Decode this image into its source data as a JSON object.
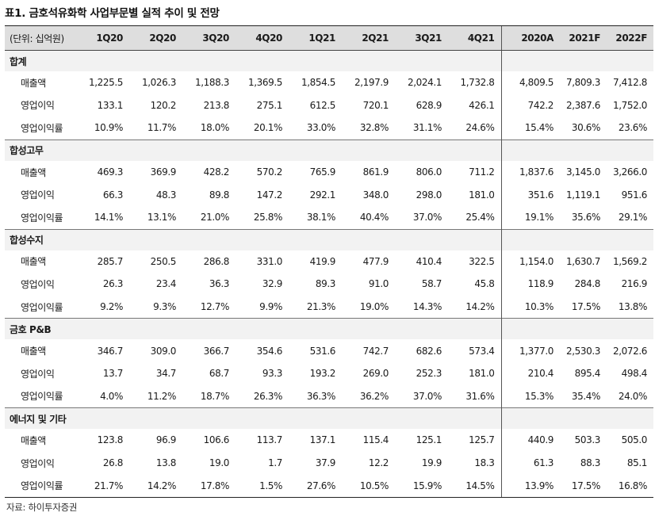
{
  "title": "표1.  금호석유화학 사업부문별 실적 추이 및 전망",
  "header": {
    "unit": "(단위: 십억원)",
    "quarters": [
      "1Q20",
      "2Q20",
      "3Q20",
      "4Q20",
      "1Q21",
      "2Q21",
      "3Q21",
      "4Q21"
    ],
    "years": [
      "2020A",
      "2021F",
      "2022F"
    ]
  },
  "segments": [
    {
      "name": "합계",
      "rows": [
        {
          "label": "매출액",
          "values": [
            "1,225.5",
            "1,026.3",
            "1,188.3",
            "1,369.5",
            "1,854.5",
            "2,197.9",
            "2,024.1",
            "1,732.8",
            "4,809.5",
            "7,809.3",
            "7,412.8"
          ]
        },
        {
          "label": "영업이익",
          "values": [
            "133.1",
            "120.2",
            "213.8",
            "275.1",
            "612.5",
            "720.1",
            "628.9",
            "426.1",
            "742.2",
            "2,387.6",
            "1,752.0"
          ]
        },
        {
          "label": "영업이익률",
          "values": [
            "10.9%",
            "11.7%",
            "18.0%",
            "20.1%",
            "33.0%",
            "32.8%",
            "31.1%",
            "24.6%",
            "15.4%",
            "30.6%",
            "23.6%"
          ]
        }
      ]
    },
    {
      "name": "합성고무",
      "rows": [
        {
          "label": "매출액",
          "values": [
            "469.3",
            "369.9",
            "428.2",
            "570.2",
            "765.9",
            "861.9",
            "806.0",
            "711.2",
            "1,837.6",
            "3,145.0",
            "3,266.0"
          ]
        },
        {
          "label": "영업이익",
          "values": [
            "66.3",
            "48.3",
            "89.8",
            "147.2",
            "292.1",
            "348.0",
            "298.0",
            "181.0",
            "351.6",
            "1,119.1",
            "951.6"
          ]
        },
        {
          "label": "영업이익률",
          "values": [
            "14.1%",
            "13.1%",
            "21.0%",
            "25.8%",
            "38.1%",
            "40.4%",
            "37.0%",
            "25.4%",
            "19.1%",
            "35.6%",
            "29.1%"
          ]
        }
      ]
    },
    {
      "name": "합성수지",
      "rows": [
        {
          "label": "매출액",
          "values": [
            "285.7",
            "250.5",
            "286.8",
            "331.0",
            "419.9",
            "477.9",
            "410.4",
            "322.5",
            "1,154.0",
            "1,630.7",
            "1,569.2"
          ]
        },
        {
          "label": "영업이익",
          "values": [
            "26.3",
            "23.4",
            "36.3",
            "32.9",
            "89.3",
            "91.0",
            "58.7",
            "45.8",
            "118.9",
            "284.8",
            "216.9"
          ]
        },
        {
          "label": "영업이익률",
          "values": [
            "9.2%",
            "9.3%",
            "12.7%",
            "9.9%",
            "21.3%",
            "19.0%",
            "14.3%",
            "14.2%",
            "10.3%",
            "17.5%",
            "13.8%"
          ]
        }
      ]
    },
    {
      "name": "금호 P&B",
      "rows": [
        {
          "label": "매출액",
          "values": [
            "346.7",
            "309.0",
            "366.7",
            "354.6",
            "531.6",
            "742.7",
            "682.6",
            "573.4",
            "1,377.0",
            "2,530.3",
            "2,072.6"
          ]
        },
        {
          "label": "영업이익",
          "values": [
            "13.7",
            "34.7",
            "68.7",
            "93.3",
            "193.2",
            "269.0",
            "252.3",
            "181.0",
            "210.4",
            "895.4",
            "498.4"
          ]
        },
        {
          "label": "영업이익률",
          "values": [
            "4.0%",
            "11.2%",
            "18.7%",
            "26.3%",
            "36.3%",
            "36.2%",
            "37.0%",
            "31.6%",
            "15.3%",
            "35.4%",
            "24.0%"
          ]
        }
      ]
    },
    {
      "name": "에너지 및 기타",
      "rows": [
        {
          "label": "매출액",
          "values": [
            "123.8",
            "96.9",
            "106.6",
            "113.7",
            "137.1",
            "115.4",
            "125.1",
            "125.7",
            "440.9",
            "503.3",
            "505.0"
          ]
        },
        {
          "label": "영업이익",
          "values": [
            "26.8",
            "13.8",
            "19.0",
            "1.7",
            "37.9",
            "12.2",
            "19.9",
            "18.3",
            "61.3",
            "88.3",
            "85.1"
          ]
        },
        {
          "label": "영업이익률",
          "values": [
            "21.7%",
            "14.2%",
            "17.8%",
            "1.5%",
            "27.6%",
            "10.5%",
            "15.9%",
            "14.5%",
            "13.9%",
            "17.5%",
            "16.8%"
          ]
        }
      ]
    }
  ],
  "source": "자료: 하이투자증권"
}
